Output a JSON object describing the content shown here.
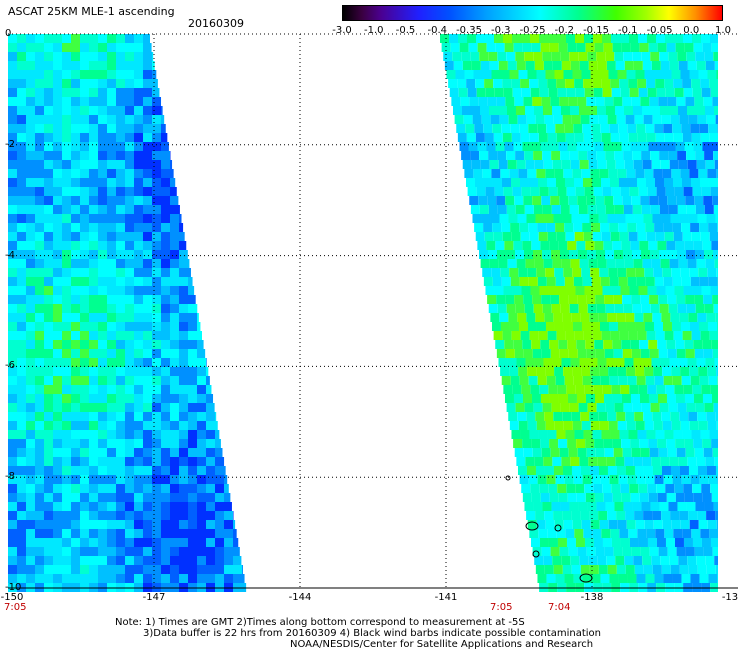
{
  "title": "ASCAT 25KM MLE-1 ascending",
  "date": "20160309",
  "colorbar": {
    "ticks": [
      "-3.0",
      "-1.0",
      "-0.5",
      "-0.4",
      "-0.35",
      "-0.3",
      "-0.25",
      "-0.2",
      "-0.15",
      "-0.1",
      "-0.05",
      "0.0",
      "1.0"
    ]
  },
  "axes": {
    "x_ticks": [
      "-150",
      "-147",
      "-144",
      "-141",
      "-138",
      "-13"
    ],
    "y_ticks": [
      "0",
      "-2",
      "-4",
      "-6",
      "-8",
      "-10"
    ],
    "x_range": [
      -150,
      -135
    ],
    "y_range": [
      0,
      -10
    ]
  },
  "times": {
    "left": "7:05",
    "mid": "7:05",
    "right": "7:04"
  },
  "notes": [
    "Note: 1) Times are GMT 2)Times along bottom correspond to measurement at -5S",
    "3)Data buffer is 22 hrs from 20160309 4) Black wind barbs indicate possible contamination",
    "NOAA/NESDIS/Center for Satellite Applications and Research"
  ],
  "colors": {
    "swath_base": "#00ffff",
    "low": "#0030ff",
    "high": "#40ff00",
    "grid": "#000000"
  }
}
